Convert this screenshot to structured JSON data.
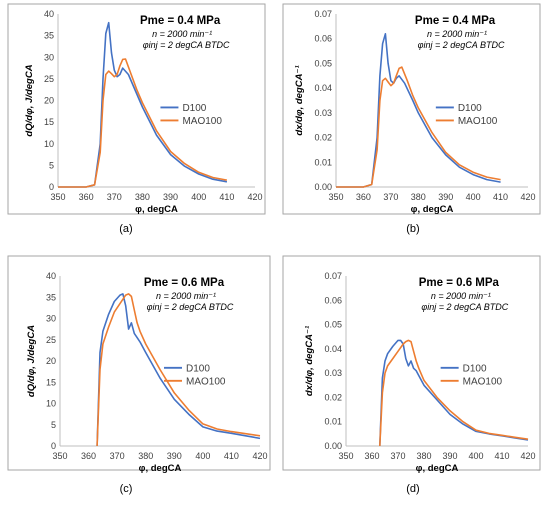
{
  "colors": {
    "series1": "#4472C4",
    "series2": "#ED7D31",
    "grid": "#D9D9D9",
    "frame": "#A6A6A6",
    "text": "#000000"
  },
  "panel_labels": [
    "(a)",
    "(b)",
    "(c)",
    "(d)"
  ],
  "chart_data": [
    {
      "type": "line",
      "panel": "(a)",
      "xlabel": "φ, degCA",
      "ylabel": "dQ/dφ, J/degCA",
      "xlim": [
        350,
        420
      ],
      "ylim": [
        0,
        40
      ],
      "xticks": [
        350,
        360,
        370,
        380,
        390,
        400,
        410,
        420
      ],
      "yticks": [
        0,
        5,
        10,
        15,
        20,
        25,
        30,
        35,
        40
      ],
      "grid": false,
      "legend_position": "center-right",
      "annotations": [
        "Pme = 0.4 MPa",
        "n = 2000 min⁻¹",
        "φinj = 2 degCA BTDC"
      ],
      "series": [
        {
          "name": "D100",
          "color": "#4472C4",
          "x": [
            350,
            360,
            363,
            365,
            366,
            367,
            368,
            369,
            370,
            371,
            372,
            373,
            375,
            378,
            380,
            385,
            390,
            395,
            400,
            405,
            410
          ],
          "y": [
            0,
            0,
            0.5,
            10,
            25,
            35.5,
            38,
            31,
            27,
            25.5,
            26,
            27.5,
            26,
            21.5,
            18.5,
            12,
            7.5,
            4.8,
            3,
            1.8,
            1.2
          ]
        },
        {
          "name": "MAO100",
          "color": "#ED7D31",
          "x": [
            350,
            360,
            363,
            365,
            366,
            367,
            368,
            369,
            370,
            371,
            372,
            373,
            374,
            376,
            378,
            380,
            385,
            390,
            395,
            400,
            405,
            410
          ],
          "y": [
            0,
            0,
            0.5,
            8,
            20,
            26,
            26.8,
            26.2,
            25.5,
            26,
            28,
            29.5,
            29.6,
            26,
            22.5,
            19.5,
            13,
            8.2,
            5.4,
            3.4,
            2.2,
            1.6
          ]
        }
      ]
    },
    {
      "type": "line",
      "panel": "(b)",
      "xlabel": "φ, degCA",
      "ylabel": "dx/dφ, degCA⁻¹",
      "xlim": [
        350,
        420
      ],
      "ylim": [
        0,
        0.07
      ],
      "xticks": [
        350,
        360,
        370,
        380,
        390,
        400,
        410,
        420
      ],
      "yticks": [
        0,
        0.01,
        0.02,
        0.03,
        0.04,
        0.05,
        0.06,
        0.07
      ],
      "ytick_decimals": 2,
      "grid": false,
      "legend_position": "center-right",
      "annotations": [
        "Pme = 0.4 MPa",
        "n = 2000 min⁻¹",
        "φinj = 2 degCA BTDC"
      ],
      "series": [
        {
          "name": "D100",
          "color": "#4472C4",
          "x": [
            350,
            360,
            363,
            365,
            366,
            367,
            368,
            369,
            370,
            371,
            372,
            373,
            375,
            378,
            380,
            385,
            390,
            395,
            400,
            405,
            410
          ],
          "y": [
            0,
            0,
            0.001,
            0.02,
            0.045,
            0.058,
            0.062,
            0.05,
            0.043,
            0.042,
            0.044,
            0.045,
            0.042,
            0.035,
            0.03,
            0.02,
            0.013,
            0.008,
            0.005,
            0.003,
            0.002
          ]
        },
        {
          "name": "MAO100",
          "color": "#ED7D31",
          "x": [
            350,
            360,
            363,
            365,
            366,
            367,
            368,
            369,
            370,
            371,
            372,
            373,
            374,
            376,
            378,
            380,
            385,
            390,
            395,
            400,
            405,
            410
          ],
          "y": [
            0,
            0,
            0.001,
            0.015,
            0.035,
            0.043,
            0.044,
            0.0425,
            0.041,
            0.042,
            0.045,
            0.048,
            0.0485,
            0.043,
            0.037,
            0.032,
            0.022,
            0.014,
            0.009,
            0.006,
            0.004,
            0.003
          ]
        }
      ]
    },
    {
      "type": "line",
      "panel": "(c)",
      "xlabel": "φ, degCA",
      "ylabel": "dQ/dφ, J/degCA",
      "xlim": [
        350,
        420
      ],
      "ylim": [
        0,
        40
      ],
      "xticks": [
        350,
        360,
        370,
        380,
        390,
        400,
        410,
        420
      ],
      "yticks": [
        0,
        5,
        10,
        15,
        20,
        25,
        30,
        35,
        40
      ],
      "grid": false,
      "legend_position": "center-right",
      "annotations": [
        "Pme = 0.6 MPa",
        "n = 2000 min⁻¹",
        "φinj = 2 degCA BTDC"
      ],
      "series": [
        {
          "name": "D100",
          "color": "#4472C4",
          "x": [
            363,
            364,
            365,
            367,
            369,
            371,
            372,
            373,
            374,
            375,
            376,
            377,
            378,
            380,
            385,
            390,
            395,
            400,
            405,
            410,
            415,
            420
          ],
          "y": [
            0,
            22,
            27,
            31,
            34,
            35.5,
            35.8,
            33,
            27.5,
            29,
            26.5,
            25.5,
            24.5,
            22,
            16,
            11,
            7.5,
            4.5,
            3.5,
            3,
            2.4,
            1.8
          ]
        },
        {
          "name": "MAO100",
          "color": "#ED7D31",
          "x": [
            363,
            364,
            365,
            367,
            369,
            371,
            373,
            374,
            375,
            376,
            377,
            378,
            380,
            385,
            390,
            395,
            400,
            405,
            410,
            415,
            420
          ],
          "y": [
            0,
            18,
            24,
            28,
            31.5,
            33.5,
            35.5,
            35.8,
            35.2,
            32,
            29,
            27,
            24,
            18,
            12.5,
            8.5,
            5.2,
            4,
            3.4,
            2.9,
            2.4
          ]
        }
      ]
    },
    {
      "type": "line",
      "panel": "(d)",
      "xlabel": "φ, degCA",
      "ylabel": "dx/dφ, degCA⁻¹",
      "xlim": [
        350,
        420
      ],
      "ylim": [
        0,
        0.07
      ],
      "xticks": [
        350,
        360,
        370,
        380,
        390,
        400,
        410,
        420
      ],
      "yticks": [
        0,
        0.01,
        0.02,
        0.03,
        0.04,
        0.05,
        0.06,
        0.07
      ],
      "ytick_decimals": 2,
      "grid": false,
      "legend_position": "center-right",
      "annotations": [
        "Pme = 0.6 MPa",
        "n = 2000 min⁻¹",
        "φinj = 2 degCA BTDC"
      ],
      "series": [
        {
          "name": "D100",
          "color": "#4472C4",
          "x": [
            363,
            364,
            365,
            366,
            368,
            370,
            371,
            372,
            373,
            374,
            375,
            376,
            377,
            378,
            380,
            385,
            390,
            395,
            400,
            405,
            410,
            415,
            420
          ],
          "y": [
            0,
            0.028,
            0.035,
            0.038,
            0.041,
            0.0435,
            0.0435,
            0.042,
            0.036,
            0.033,
            0.035,
            0.032,
            0.031,
            0.029,
            0.025,
            0.019,
            0.013,
            0.009,
            0.006,
            0.005,
            0.0042,
            0.0033,
            0.0025
          ]
        },
        {
          "name": "MAO100",
          "color": "#ED7D31",
          "x": [
            363,
            364,
            365,
            366,
            368,
            370,
            372,
            373,
            374,
            375,
            376,
            377,
            378,
            380,
            385,
            390,
            395,
            400,
            405,
            410,
            415,
            420
          ],
          "y": [
            0,
            0.022,
            0.03,
            0.033,
            0.036,
            0.039,
            0.042,
            0.043,
            0.0435,
            0.043,
            0.039,
            0.035,
            0.032,
            0.027,
            0.02,
            0.0145,
            0.01,
            0.0065,
            0.0052,
            0.0044,
            0.0036,
            0.0028
          ]
        }
      ]
    }
  ]
}
